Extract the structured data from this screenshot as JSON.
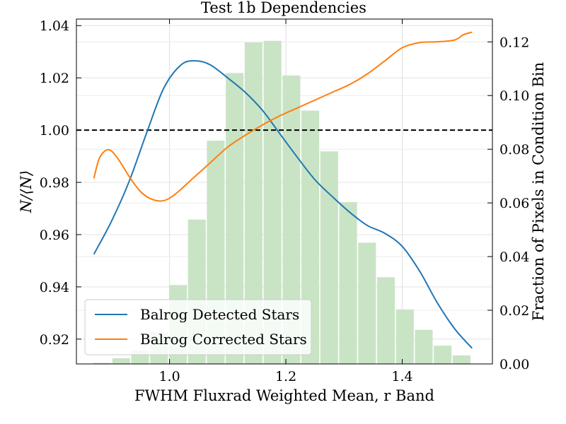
{
  "chart_data": {
    "type": "line",
    "title": "Test 1b Dependencies",
    "xlabel": "FWHM Fluxrad Weighted Mean, r Band",
    "ylabel": "N/⟨N⟩",
    "y2label": "Fraction of Pixels in Condition Bin",
    "xlim": [
      0.84,
      1.555
    ],
    "ylim": [
      0.9105,
      1.0425
    ],
    "y2lim": [
      0.0,
      0.1285
    ],
    "x_ticks": [
      {
        "v": 1.0,
        "t": "1.0"
      },
      {
        "v": 1.2,
        "t": "1.2"
      },
      {
        "v": 1.4,
        "t": "1.4"
      }
    ],
    "y_ticks": [
      {
        "v": 0.92,
        "t": "0.92"
      },
      {
        "v": 0.94,
        "t": "0.94"
      },
      {
        "v": 0.96,
        "t": "0.96"
      },
      {
        "v": 0.98,
        "t": "0.98"
      },
      {
        "v": 1.0,
        "t": "1.00"
      },
      {
        "v": 1.02,
        "t": "1.02"
      },
      {
        "v": 1.04,
        "t": "1.04"
      }
    ],
    "y2_ticks": [
      {
        "v": 0.0,
        "t": "0.00"
      },
      {
        "v": 0.02,
        "t": "0.02"
      },
      {
        "v": 0.04,
        "t": "0.04"
      },
      {
        "v": 0.06,
        "t": "0.06"
      },
      {
        "v": 0.08,
        "t": "0.08"
      },
      {
        "v": 0.1,
        "t": "0.10"
      },
      {
        "v": 0.12,
        "t": "0.12"
      }
    ],
    "grid": true,
    "reference_line": {
      "y": 1.0,
      "style": "dashed",
      "color": "#000000"
    },
    "histogram": {
      "axis": "right",
      "color": "#c9e4c5",
      "bin_width": 0.0325,
      "x_centers": [
        0.8845,
        0.917,
        0.9495,
        0.982,
        1.0145,
        1.047,
        1.0795,
        1.112,
        1.1445,
        1.177,
        1.2095,
        1.242,
        1.2745,
        1.307,
        1.3395,
        1.372,
        1.4045,
        1.437,
        1.4695,
        1.502
      ],
      "values": [
        0.0004,
        0.0021,
        0.005,
        0.0118,
        0.0294,
        0.0538,
        0.0832,
        0.1084,
        0.1198,
        0.1204,
        0.1075,
        0.0944,
        0.0792,
        0.0603,
        0.0452,
        0.0323,
        0.0203,
        0.0127,
        0.0068,
        0.0032
      ]
    },
    "series": [
      {
        "name": "Balrog Detected Stars",
        "color": "#1f77b4",
        "x": [
          0.87,
          0.9,
          0.93,
          0.96,
          0.99,
          1.02,
          1.045,
          1.07,
          1.1,
          1.13,
          1.16,
          1.19,
          1.22,
          1.25,
          1.28,
          1.31,
          1.34,
          1.37,
          1.4,
          1.43,
          1.46,
          1.49,
          1.52
        ],
        "y": [
          0.9525,
          0.965,
          0.98,
          0.9985,
          1.016,
          1.025,
          1.0265,
          1.025,
          1.02,
          1.0145,
          1.0075,
          0.9985,
          0.9895,
          0.981,
          0.9745,
          0.9685,
          0.9635,
          0.9605,
          0.9555,
          0.946,
          0.934,
          0.924,
          0.9165
        ]
      },
      {
        "name": "Balrog Corrected Stars",
        "color": "#ff7f0e",
        "x": [
          0.87,
          0.88,
          0.895,
          0.91,
          0.93,
          0.95,
          0.97,
          0.99,
          1.01,
          1.04,
          1.07,
          1.1,
          1.13,
          1.16,
          1.19,
          1.22,
          1.25,
          1.28,
          1.31,
          1.34,
          1.37,
          1.4,
          1.43,
          1.46,
          1.49,
          1.505,
          1.52
        ],
        "y": [
          0.9815,
          0.9895,
          0.9925,
          0.9895,
          0.9825,
          0.9765,
          0.9735,
          0.973,
          0.9755,
          0.9815,
          0.9875,
          0.9935,
          0.998,
          1.002,
          1.0055,
          1.0085,
          1.0115,
          1.0145,
          1.0175,
          1.0215,
          1.0265,
          1.0315,
          1.0335,
          1.0338,
          1.0345,
          1.0365,
          1.0375
        ]
      }
    ],
    "legend_position": "lower-left"
  }
}
